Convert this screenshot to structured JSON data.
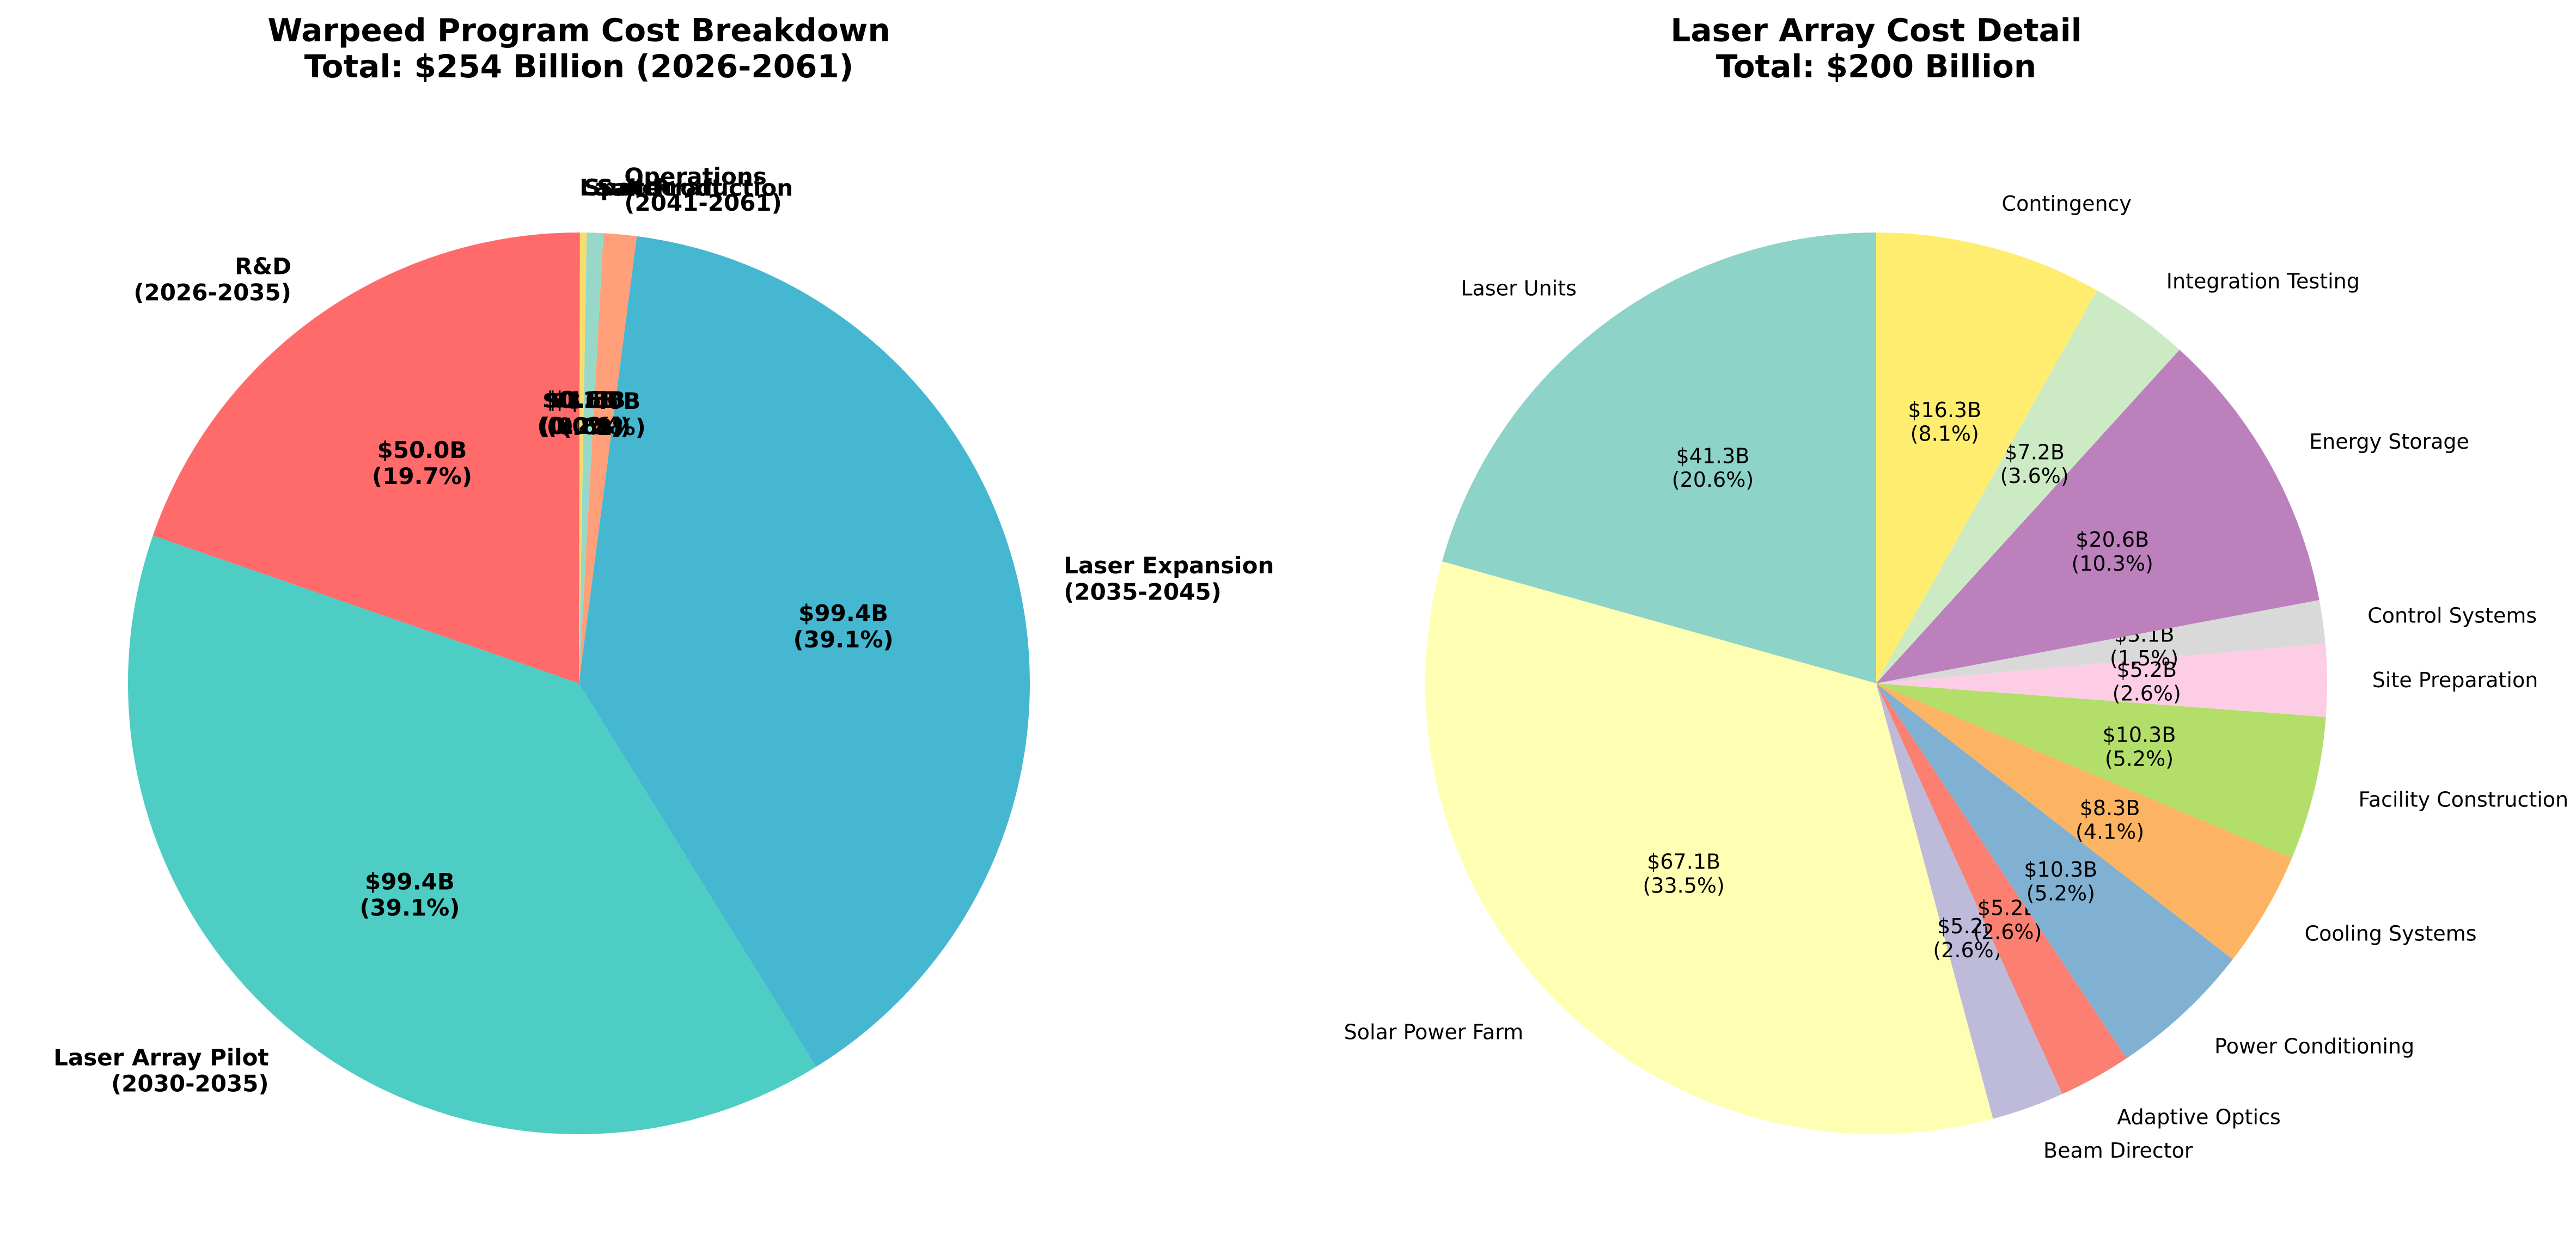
{
  "chart_data": [
    {
      "type": "pie",
      "title": "Warpeed Program Cost Breakdown\nTotal: $254 Billion (2026-2061)",
      "start_angle_deg": 90,
      "direction": "counterclockwise",
      "slices": [
        {
          "label": "R&D\n(2026-2035)",
          "value": 50.0,
          "value_label": "$50.0B\n(19.7%)",
          "color": "#FF6B6B"
        },
        {
          "label": "Laser Array Pilot\n(2030-2035)",
          "value": 99.4,
          "value_label": "$99.4B\n(39.1%)",
          "color": "#4ECDC4"
        },
        {
          "label": "Laser Expansion\n(2035-2045)",
          "value": 99.4,
          "value_label": "$99.4B\n(39.1%)",
          "color": "#45B7D1"
        },
        {
          "label": "Operations\n(2041-2061)",
          "value": 3.0,
          "value_label": "$3.0B\n(1.2%)",
          "color": "#FFA07A"
        },
        {
          "label": "Sail Production",
          "value": 1.5,
          "value_label": "$1.5B\n(0.6%)",
          "color": "#98D8C8"
        },
        {
          "label": "Spacecraft",
          "value": 0.6,
          "value_label": "$0.6B\n(0.2%)",
          "color": "#F7DC6F"
        },
        {
          "label": "Launch",
          "value": 0.1,
          "value_label": "$0.1B\n(0.0%)",
          "color": "#BB8FCE"
        }
      ]
    },
    {
      "type": "pie",
      "title": "Laser Array Cost Detail\nTotal: $200 Billion",
      "start_angle_deg": 90,
      "direction": "counterclockwise",
      "slices": [
        {
          "label": "Laser Units",
          "value": 41.3,
          "value_label": "$41.3B\n(20.6%)",
          "color": "#8DD3C7"
        },
        {
          "label": "Solar Power Farm",
          "value": 67.1,
          "value_label": "$67.1B\n(33.5%)",
          "color": "#FFFFB3"
        },
        {
          "label": "Beam Director",
          "value": 5.2,
          "value_label": "$5.2B\n(2.6%)",
          "color": "#BEBADA"
        },
        {
          "label": "Adaptive Optics",
          "value": 5.2,
          "value_label": "$5.2B\n(2.6%)",
          "color": "#FB8072"
        },
        {
          "label": "Power Conditioning",
          "value": 10.3,
          "value_label": "$10.3B\n(5.2%)",
          "color": "#80B1D3"
        },
        {
          "label": "Cooling Systems",
          "value": 8.3,
          "value_label": "$8.3B\n(4.1%)",
          "color": "#FDB462"
        },
        {
          "label": "Facility Construction",
          "value": 10.3,
          "value_label": "$10.3B\n(5.2%)",
          "color": "#B3DE69"
        },
        {
          "label": "Site Preparation",
          "value": 5.2,
          "value_label": "$5.2B\n(2.6%)",
          "color": "#FCCDE5"
        },
        {
          "label": "Control Systems",
          "value": 3.1,
          "value_label": "$3.1B\n(1.5%)",
          "color": "#D9D9D9"
        },
        {
          "label": "Energy Storage",
          "value": 20.6,
          "value_label": "$20.6B\n(10.3%)",
          "color": "#BC80BD"
        },
        {
          "label": "Integration Testing",
          "value": 7.2,
          "value_label": "$7.2B\n(3.6%)",
          "color": "#CCEBC5"
        },
        {
          "label": "Contingency",
          "value": 16.3,
          "value_label": "$16.3B\n(8.1%)",
          "color": "#FFED6F"
        }
      ]
    }
  ]
}
